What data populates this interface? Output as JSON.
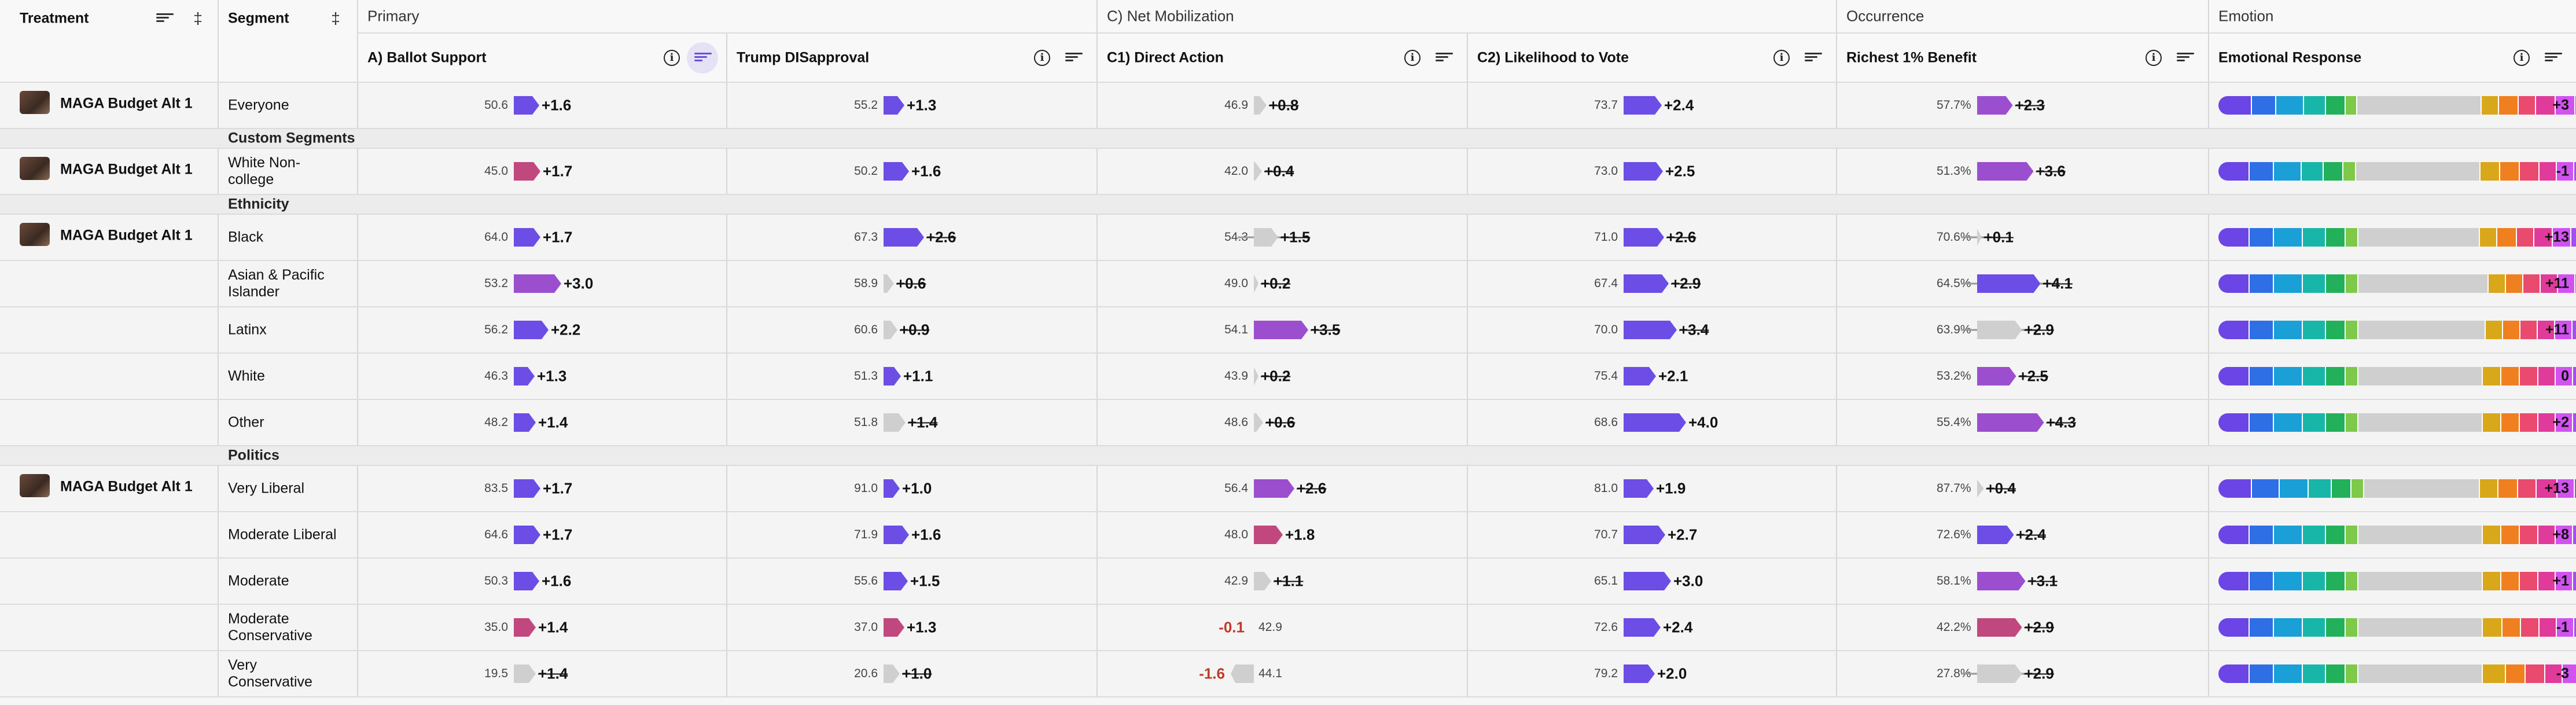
{
  "header": {
    "groups": [
      "Primary",
      "C) Net Mobilization",
      "Occurrence",
      "Emotion"
    ],
    "treatment_label": "Treatment",
    "segment_label": "Segment",
    "columns": [
      "A) Ballot Support",
      "Trump DISapproval",
      "C1) Direct Action",
      "C2) Likelihood to Vote",
      "Richest 1% Benefit",
      "Emotional Response"
    ]
  },
  "sections": [
    "Custom Segments",
    "Ethnicity",
    "Politics"
  ],
  "treatment_name": "MAGA Budget Alt 1",
  "colors": {
    "purple": "#6c4de6",
    "violet": "#9b4fcf",
    "magenta": "#c0487f",
    "gray": "#cfcfcf",
    "negative": "#c0392b",
    "emotion_palette": [
      "#6b45e6",
      "#2f6fe6",
      "#1aa0d6",
      "#18b6a8",
      "#22b05a",
      "#7ec84a",
      "#cfcfcf",
      "#d8a81a",
      "#ef7f1f",
      "#ea4a6e",
      "#e03a9a",
      "#d152f0",
      "#a34ff0"
    ]
  },
  "rows": [
    {
      "segment": "Everyone",
      "treatment": true,
      "cells": [
        {
          "base": "50.6",
          "delta": "+1.6",
          "color": "purple",
          "len": 44
        },
        {
          "base": "55.2",
          "delta": "+1.3",
          "color": "purple",
          "len": 36
        },
        {
          "base": "46.9",
          "delta": "+0.8",
          "color": "gray",
          "len": 22,
          "strike": true
        },
        {
          "base": "73.7",
          "delta": "+2.4",
          "color": "purple",
          "len": 66
        },
        {
          "base": "57.7%",
          "delta": "+2.3",
          "color": "violet",
          "len": 62,
          "strike": true
        },
        {
          "emo": [
            58,
            42,
            48,
            38,
            34,
            20,
            215,
            30,
            34,
            30,
            34,
            34,
            30
          ],
          "val": "+3"
        }
      ]
    },
    {
      "section": "Custom Segments"
    },
    {
      "segment": "White Non-college",
      "treatment": true,
      "cells": [
        {
          "base": "45.0",
          "delta": "+1.7",
          "color": "magenta",
          "len": 46
        },
        {
          "base": "50.2",
          "delta": "+1.6",
          "color": "purple",
          "len": 44
        },
        {
          "base": "42.0",
          "delta": "+0.4",
          "color": "gray",
          "len": 14,
          "strike": true
        },
        {
          "base": "73.0",
          "delta": "+2.5",
          "color": "purple",
          "len": 68
        },
        {
          "base": "51.3%",
          "delta": "+3.6",
          "color": "violet",
          "len": 98,
          "strike": true
        },
        {
          "emo": [
            54,
            42,
            48,
            38,
            34,
            22,
            215,
            34,
            34,
            34,
            30,
            30,
            30
          ],
          "val": "-1"
        }
      ]
    },
    {
      "section": "Ethnicity"
    },
    {
      "segment": "Black",
      "treatment": true,
      "cells": [
        {
          "base": "64.0",
          "delta": "+1.7",
          "color": "purple",
          "len": 46
        },
        {
          "base": "67.3",
          "delta": "+2.6",
          "color": "purple",
          "len": 70,
          "strike": true
        },
        {
          "base": "54.3",
          "delta": "+1.5",
          "color": "gray",
          "len": 42,
          "strike": true,
          "whisk": true
        },
        {
          "base": "71.0",
          "delta": "+2.6",
          "color": "purple",
          "len": 70,
          "strike": true
        },
        {
          "base": "70.6%",
          "delta": "+0.1",
          "color": "gray",
          "len": 8,
          "strike": true,
          "whisk": true
        },
        {
          "emo": [
            54,
            42,
            50,
            40,
            34,
            22,
            210,
            30,
            34,
            30,
            32,
            32,
            28
          ],
          "val": "+13"
        }
      ]
    },
    {
      "segment": "Asian & Pacific Islander",
      "cells": [
        {
          "base": "53.2",
          "delta": "+3.0",
          "color": "violet",
          "len": 82
        },
        {
          "base": "58.9",
          "delta": "+0.6",
          "color": "gray",
          "len": 18,
          "strike": true
        },
        {
          "base": "49.0",
          "delta": "+0.2",
          "color": "gray",
          "len": 8,
          "strike": true
        },
        {
          "base": "67.4",
          "delta": "+2.9",
          "color": "purple",
          "len": 78,
          "strike": true
        },
        {
          "base": "64.5%",
          "delta": "+4.1",
          "color": "purple",
          "len": 110,
          "strike": true,
          "whisk": true
        },
        {
          "emo": [
            54,
            42,
            50,
            40,
            34,
            22,
            225,
            30,
            30,
            30,
            30,
            30,
            26
          ],
          "val": "+11"
        }
      ]
    },
    {
      "segment": "Latinx",
      "cells": [
        {
          "base": "56.2",
          "delta": "+2.2",
          "color": "purple",
          "len": 60
        },
        {
          "base": "60.6",
          "delta": "+0.9",
          "color": "gray",
          "len": 24,
          "strike": true
        },
        {
          "base": "54.1",
          "delta": "+3.5",
          "color": "violet",
          "len": 94,
          "strike": true
        },
        {
          "base": "70.0",
          "delta": "+3.4",
          "color": "purple",
          "len": 92,
          "strike": true
        },
        {
          "base": "63.9%",
          "delta": "+2.9",
          "color": "gray",
          "len": 78,
          "strike": true,
          "whisk": true
        },
        {
          "emo": [
            54,
            42,
            50,
            40,
            34,
            22,
            220,
            30,
            30,
            30,
            30,
            30,
            26
          ],
          "val": "+11"
        }
      ]
    },
    {
      "segment": "White",
      "cells": [
        {
          "base": "46.3",
          "delta": "+1.3",
          "color": "purple",
          "len": 36
        },
        {
          "base": "51.3",
          "delta": "+1.1",
          "color": "purple",
          "len": 30
        },
        {
          "base": "43.9",
          "delta": "+0.2",
          "color": "gray",
          "len": 8,
          "strike": true
        },
        {
          "base": "75.4",
          "delta": "+2.1",
          "color": "purple",
          "len": 56
        },
        {
          "base": "53.2%",
          "delta": "+2.5",
          "color": "violet",
          "len": 68,
          "strike": true
        },
        {
          "emo": [
            54,
            42,
            50,
            40,
            34,
            22,
            215,
            32,
            32,
            32,
            30,
            30,
            28
          ],
          "val": "0"
        }
      ]
    },
    {
      "segment": "Other",
      "cells": [
        {
          "base": "48.2",
          "delta": "+1.4",
          "color": "purple",
          "len": 38
        },
        {
          "base": "51.8",
          "delta": "+1.4",
          "color": "gray",
          "len": 38,
          "strike": true
        },
        {
          "base": "48.6",
          "delta": "+0.6",
          "color": "gray",
          "len": 16,
          "strike": true
        },
        {
          "base": "68.6",
          "delta": "+4.0",
          "color": "purple",
          "len": 108
        },
        {
          "base": "55.4%",
          "delta": "+4.3",
          "color": "violet",
          "len": 116,
          "strike": true
        },
        {
          "emo": [
            54,
            42,
            50,
            40,
            34,
            22,
            215,
            32,
            32,
            32,
            30,
            30,
            28
          ],
          "val": "+2"
        }
      ]
    },
    {
      "section": "Politics"
    },
    {
      "segment": "Very Liberal",
      "treatment": true,
      "cells": [
        {
          "base": "83.5",
          "delta": "+1.7",
          "color": "purple",
          "len": 46
        },
        {
          "base": "91.0",
          "delta": "+1.0",
          "color": "purple",
          "len": 28
        },
        {
          "base": "56.4",
          "delta": "+2.6",
          "color": "violet",
          "len": 70,
          "strike": true
        },
        {
          "base": "81.0",
          "delta": "+1.9",
          "color": "purple",
          "len": 52
        },
        {
          "base": "87.7%",
          "delta": "+0.4",
          "color": "gray",
          "len": 12,
          "strike": true
        },
        {
          "emo": [
            58,
            48,
            50,
            40,
            34,
            22,
            200,
            32,
            34,
            32,
            36,
            30,
            24
          ],
          "val": "+13"
        }
      ]
    },
    {
      "segment": "Moderate Liberal",
      "cells": [
        {
          "base": "64.6",
          "delta": "+1.7",
          "color": "purple",
          "len": 46
        },
        {
          "base": "71.9",
          "delta": "+1.6",
          "color": "purple",
          "len": 44
        },
        {
          "base": "48.0",
          "delta": "+1.8",
          "color": "magenta",
          "len": 50
        },
        {
          "base": "70.7",
          "delta": "+2.7",
          "color": "purple",
          "len": 72
        },
        {
          "base": "72.6%",
          "delta": "+2.4",
          "color": "purple",
          "len": 64,
          "strike": true
        },
        {
          "emo": [
            54,
            42,
            50,
            40,
            34,
            22,
            215,
            32,
            32,
            32,
            30,
            30,
            28
          ],
          "val": "+8"
        }
      ]
    },
    {
      "segment": "Moderate",
      "cells": [
        {
          "base": "50.3",
          "delta": "+1.6",
          "color": "purple",
          "len": 44
        },
        {
          "base": "55.6",
          "delta": "+1.5",
          "color": "purple",
          "len": 42
        },
        {
          "base": "42.9",
          "delta": "+1.1",
          "color": "gray",
          "len": 30,
          "strike": true
        },
        {
          "base": "65.1",
          "delta": "+3.0",
          "color": "purple",
          "len": 82
        },
        {
          "base": "58.1%",
          "delta": "+3.1",
          "color": "violet",
          "len": 84,
          "strike": true
        },
        {
          "emo": [
            54,
            42,
            50,
            40,
            34,
            22,
            215,
            32,
            32,
            32,
            30,
            30,
            28
          ],
          "val": "+1"
        }
      ]
    },
    {
      "segment": "Moderate Conservative",
      "cells": [
        {
          "base": "35.0",
          "delta": "+1.4",
          "color": "magenta",
          "len": 38
        },
        {
          "base": "37.0",
          "delta": "+1.3",
          "color": "magenta",
          "len": 36
        },
        {
          "base": "42.9",
          "delta": "-0.1",
          "color": "gray",
          "len": 0,
          "neg": true,
          "strike": true
        },
        {
          "base": "72.6",
          "delta": "+2.4",
          "color": "purple",
          "len": 64
        },
        {
          "base": "42.2%",
          "delta": "+2.9",
          "color": "magenta",
          "len": 78,
          "strike": true
        },
        {
          "emo": [
            54,
            42,
            50,
            40,
            34,
            22,
            215,
            34,
            32,
            32,
            30,
            30,
            28
          ],
          "val": "-1"
        }
      ]
    },
    {
      "segment": "Very Conservative",
      "cells": [
        {
          "base": "19.5",
          "delta": "+1.4",
          "color": "gray",
          "len": 38,
          "strike": true
        },
        {
          "base": "20.6",
          "delta": "+1.0",
          "color": "gray",
          "len": 28,
          "strike": true
        },
        {
          "base": "44.1",
          "delta": "-1.6",
          "color": "gray",
          "len": 40,
          "neg": true,
          "strike": true
        },
        {
          "base": "79.2",
          "delta": "+2.0",
          "color": "purple",
          "len": 54
        },
        {
          "base": "27.8%",
          "delta": "+2.9",
          "color": "gray",
          "len": 78,
          "strike": true,
          "whisk": true
        },
        {
          "emo": [
            54,
            42,
            50,
            40,
            34,
            22,
            215,
            40,
            34,
            34,
            30,
            30,
            30
          ],
          "val": "-3"
        }
      ]
    }
  ]
}
